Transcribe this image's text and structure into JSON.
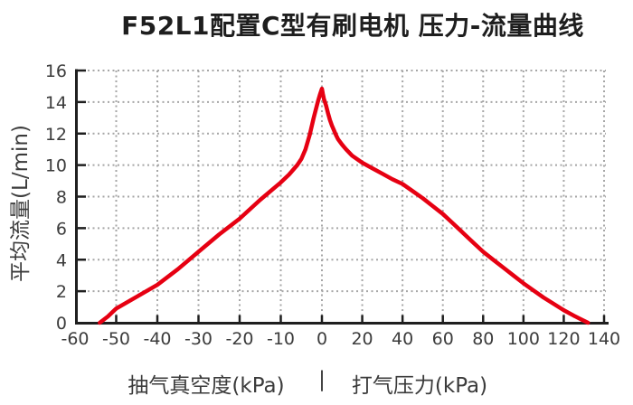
{
  "title": "F52L1配置C型有刷电机 压力-流量曲线",
  "colors": {
    "background": "#ffffff",
    "curve": "#e60012",
    "axis": "#1f1f1f",
    "grid": "#a6a6a6",
    "title_text": "#1e1e1e",
    "label_text": "#3b3b3b",
    "tick_text": "#3c3c3c"
  },
  "chart_data": {
    "type": "line",
    "title": "F52L1配置C型有刷电机 压力-流量曲线",
    "ylabel": "平均流量(L/min)",
    "xlabel_vacuum": "抽气真空度(kPa)",
    "xlabel_divider": "|",
    "xlabel_pressure": "打气压力(kPa)",
    "ylim": [
      0,
      16
    ],
    "y_ticks": [
      0,
      2,
      4,
      6,
      8,
      10,
      12,
      14,
      16
    ],
    "x_ticks_vacuum": [
      -60,
      -50,
      -40,
      -30,
      -20,
      -10,
      0
    ],
    "x_ticks_pressure": [
      20,
      40,
      60,
      80,
      100,
      120,
      140
    ],
    "x_range_vacuum": [
      -60,
      0
    ],
    "x_range_pressure": [
      0,
      140
    ],
    "grid": true,
    "legend": false,
    "axis_note": "dual-scale x axis: vacuum -60..0 kPa on left half, pump pressure 0..140 kPa on right half",
    "series": [
      {
        "name": "压力-流量曲线",
        "color": "#e60012",
        "points": [
          [
            -54,
            0
          ],
          [
            -52,
            0.4
          ],
          [
            -50,
            0.9
          ],
          [
            -45,
            1.65
          ],
          [
            -40,
            2.4
          ],
          [
            -35,
            3.4
          ],
          [
            -30,
            4.5
          ],
          [
            -25,
            5.6
          ],
          [
            -20,
            6.6
          ],
          [
            -15,
            7.8
          ],
          [
            -10,
            8.9
          ],
          [
            -8,
            9.4
          ],
          [
            -6,
            10.0
          ],
          [
            -5,
            10.4
          ],
          [
            -4,
            11.0
          ],
          [
            -3,
            11.9
          ],
          [
            -2,
            13.0
          ],
          [
            -1,
            14.0
          ],
          [
            -0.5,
            14.45
          ],
          [
            0,
            14.85
          ],
          [
            0.5,
            14.5
          ],
          [
            1,
            14.2
          ],
          [
            2,
            13.8
          ],
          [
            3,
            13.3
          ],
          [
            4,
            12.85
          ],
          [
            5,
            12.5
          ],
          [
            6,
            12.2
          ],
          [
            7,
            11.9
          ],
          [
            8,
            11.65
          ],
          [
            10,
            11.3
          ],
          [
            12,
            11.0
          ],
          [
            15,
            10.6
          ],
          [
            20,
            10.15
          ],
          [
            25,
            9.8
          ],
          [
            30,
            9.45
          ],
          [
            35,
            9.1
          ],
          [
            40,
            8.8
          ],
          [
            45,
            8.35
          ],
          [
            50,
            7.9
          ],
          [
            55,
            7.4
          ],
          [
            60,
            6.9
          ],
          [
            65,
            6.3
          ],
          [
            70,
            5.7
          ],
          [
            75,
            5.1
          ],
          [
            80,
            4.5
          ],
          [
            85,
            4.0
          ],
          [
            90,
            3.5
          ],
          [
            95,
            3.0
          ],
          [
            100,
            2.5
          ],
          [
            105,
            2.05
          ],
          [
            110,
            1.6
          ],
          [
            115,
            1.2
          ],
          [
            120,
            0.8
          ],
          [
            125,
            0.45
          ],
          [
            128,
            0.25
          ],
          [
            132,
            0
          ]
        ]
      }
    ]
  }
}
